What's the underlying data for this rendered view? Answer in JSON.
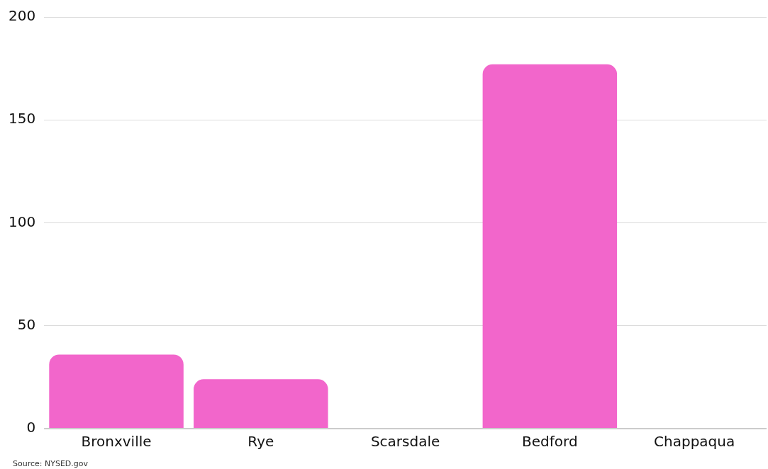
{
  "chart_data": {
    "type": "bar",
    "categories": [
      "Bronxville",
      "Rye",
      "Scarsdale",
      "Bedford",
      "Chappaqua"
    ],
    "values": [
      36,
      24,
      0,
      177,
      0
    ],
    "color": "#f266cb",
    "ylim": [
      0,
      200
    ],
    "yticks": [
      0,
      50,
      100,
      150,
      200
    ],
    "grid": "y",
    "legend": false,
    "annotations": [
      "Source:  NYSED.gov"
    ]
  }
}
